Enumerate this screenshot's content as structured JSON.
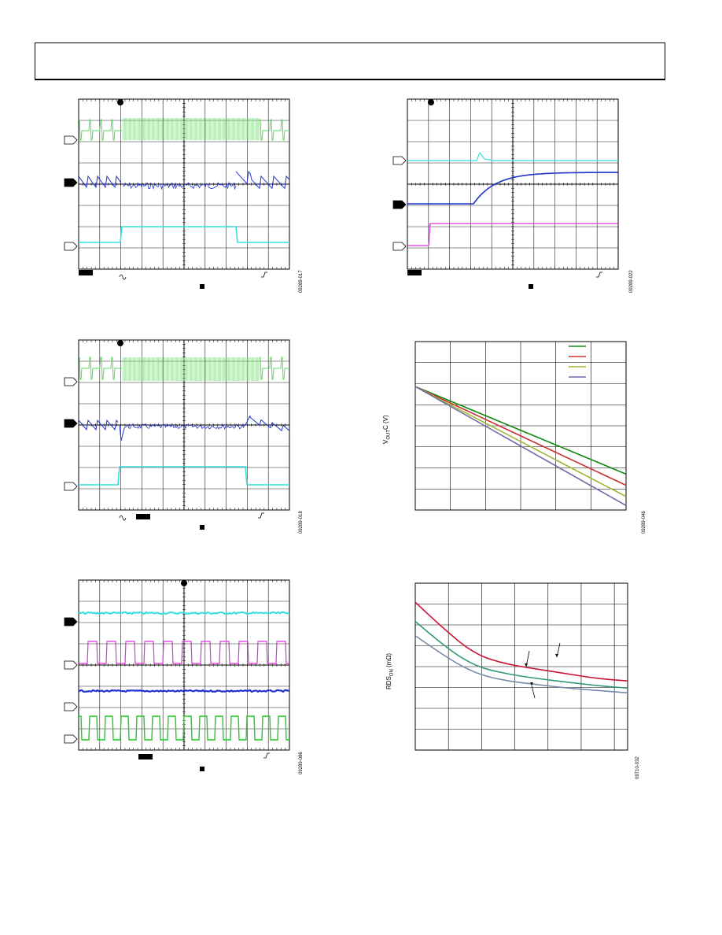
{
  "page": {
    "figure_codes": [
      "09289-017",
      "09289-022",
      "09289-018",
      "09289-046",
      "09289-086",
      "09710-032"
    ]
  },
  "chart_data": [
    {
      "type": "line",
      "panel": "scope-1",
      "grid": "10x8",
      "trace_colors": [
        "#55e055",
        "#2233cc",
        "#33dddd"
      ],
      "figure_code": "09289-017"
    },
    {
      "type": "line",
      "panel": "scope-2",
      "grid": "10x8",
      "trace_colors": [
        "#33dddd",
        "#2233cc",
        "#dd33dd"
      ],
      "figure_code": "09289-022"
    },
    {
      "type": "line",
      "panel": "scope-3",
      "grid": "10x8",
      "trace_colors": [
        "#55e055",
        "#2233cc",
        "#33dddd"
      ],
      "figure_code": "09289-018"
    },
    {
      "type": "line",
      "panel": "vout-plot",
      "ylabel": "V_OUT C (V)",
      "x": [
        0,
        6
      ],
      "series": [
        {
          "color": "#118811",
          "values": [
            10,
            2.2
          ]
        },
        {
          "color": "#cc3333",
          "values": [
            10,
            1.2
          ]
        },
        {
          "color": "#99bb33",
          "values": [
            10,
            0.2
          ]
        },
        {
          "color": "#7766aa",
          "values": [
            10,
            -0.6
          ]
        }
      ],
      "figure_code": "09289-046"
    },
    {
      "type": "line",
      "panel": "scope-4",
      "grid": "10x8",
      "trace_colors": [
        "#33dddd",
        "#dd33dd",
        "#2233cc",
        "#22cc22"
      ],
      "figure_code": "09289-086"
    },
    {
      "type": "line",
      "panel": "rdson-plot",
      "ylabel": "RDS_ON (mΩ)",
      "x": [
        0,
        1,
        2,
        3,
        4,
        5,
        6,
        7
      ],
      "series": [
        {
          "color": "#cc1133",
          "values": [
            7.2,
            6.0,
            5.0,
            4.6,
            4.4,
            4.2,
            4.0,
            3.9
          ]
        },
        {
          "color": "#339977",
          "values": [
            6.4,
            5.3,
            4.5,
            4.2,
            4.0,
            3.85,
            3.7,
            3.6
          ]
        },
        {
          "color": "#7788aa",
          "values": [
            5.8,
            4.9,
            4.2,
            3.9,
            3.75,
            3.6,
            3.5,
            3.4
          ]
        }
      ],
      "figure_code": "09710-032"
    }
  ]
}
